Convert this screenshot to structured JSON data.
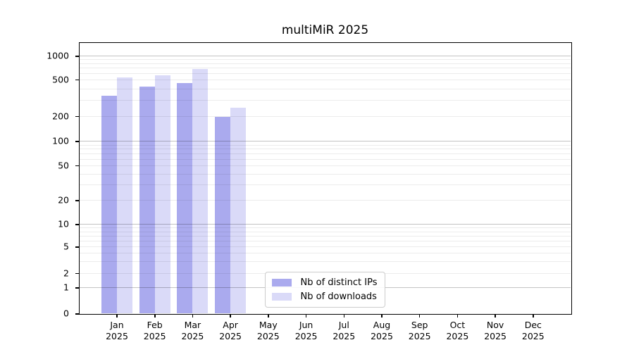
{
  "figure": {
    "title": "multiMiR 2025"
  },
  "chart_data": {
    "type": "bar",
    "title": "multiMiR 2025",
    "categories": [
      "Jan",
      "Feb",
      "Mar",
      "Apr",
      "May",
      "Jun",
      "Jul",
      "Aug",
      "Sep",
      "Oct",
      "Nov",
      "Dec"
    ],
    "year_label": "2025",
    "series": [
      {
        "name": "Nb of distinct IPs",
        "color": "#aaaaee",
        "values": [
          333,
          420,
          455,
          195,
          null,
          null,
          null,
          null,
          null,
          null,
          null,
          null
        ]
      },
      {
        "name": "Nb of downloads",
        "color": "#dadaf8",
        "values": [
          530,
          565,
          675,
          247,
          null,
          null,
          null,
          null,
          null,
          null,
          null,
          null
        ]
      }
    ],
    "yscale": "symlog",
    "yticks": [
      0,
      1,
      2,
      5,
      10,
      20,
      50,
      100,
      200,
      500,
      1000
    ],
    "ylim": [
      0,
      1300
    ],
    "xlabel": "",
    "ylabel": "",
    "grid": "horizontal",
    "legend_position": "lower center",
    "colors": {
      "major_gridline": "#c3c3c3",
      "minor_gridline": "#ececec",
      "axis_frame": "#000000",
      "legend_border": "#cccccc",
      "text": "#000000"
    }
  }
}
